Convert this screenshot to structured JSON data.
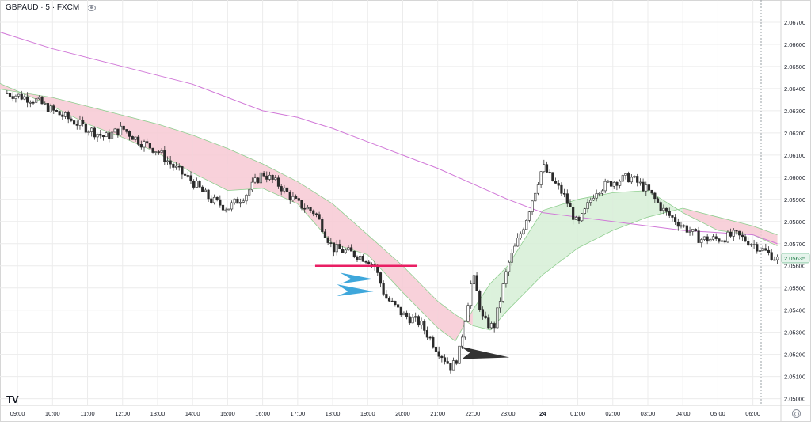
{
  "header": {
    "symbol": "GBPAUD · 5 · FXCM",
    "eye_icon": "eye-icon"
  },
  "footer": {
    "logo": "TV",
    "settings_icon": "gear-icon"
  },
  "colors": {
    "grid": "#ececec",
    "up": "#26a69a",
    "down": "#ef5350",
    "wick": "#333333",
    "ma_long": "#d179d8",
    "ribbon_red": "#f7c9d3",
    "ribbon_green": "#d6efd6",
    "ribbon_edge": "#8fce8f",
    "hline": "#e91e63",
    "arrow_blue": "#3ea7db",
    "arrow_dark": "#333333",
    "price_label": "#e6f4ec"
  },
  "chart_data": {
    "type": "candlestick",
    "symbol": "GBPAUD",
    "timeframe": "5",
    "source": "FXCM",
    "x_ticks": [
      "09:00",
      "10:00",
      "11:00",
      "12:00",
      "13:00",
      "14:00",
      "15:00",
      "16:00",
      "17:00",
      "18:00",
      "19:00",
      "20:00",
      "21:00",
      "22:00",
      "23:00",
      "24",
      "01:00",
      "02:00",
      "03:00",
      "04:00",
      "05:00",
      "06:00"
    ],
    "y_ticks": [
      "2.06700",
      "2.06600",
      "2.06500",
      "2.06400",
      "2.06300",
      "2.06200",
      "2.06100",
      "2.06000",
      "2.05900",
      "2.05800",
      "2.05700",
      "2.05600",
      "2.05500",
      "2.05400",
      "2.05300",
      "2.05200",
      "2.05100",
      "2.05000"
    ],
    "ylim": [
      2.0497,
      2.068
    ],
    "current_price": "2.05635",
    "horizontal_line": {
      "price": 2.056,
      "from_hour": 17.5,
      "to_hour": 20.4
    },
    "price_path_hours": [
      8.7,
      9.5,
      10.0,
      10.5,
      11.0,
      11.5,
      12.0,
      12.5,
      13.0,
      13.5,
      14.0,
      14.5,
      15.0,
      15.5,
      16.0,
      16.5,
      17.0,
      17.5,
      18.0,
      18.5,
      19.0,
      19.2,
      19.5,
      20.0,
      20.5,
      21.0,
      21.4,
      21.6,
      21.8,
      22.0,
      22.3,
      22.6,
      23.0,
      23.5,
      24.0,
      24.3,
      24.6,
      25.0,
      25.5,
      26.0,
      26.5,
      27.0,
      27.5,
      28.0,
      28.5,
      29.0,
      29.5,
      30.0,
      30.5,
      30.7
    ],
    "price_path_values": [
      2.0638,
      2.0635,
      2.063,
      2.0626,
      2.0622,
      2.0618,
      2.0622,
      2.0616,
      2.0612,
      2.0604,
      2.0598,
      2.059,
      2.0586,
      2.0592,
      2.0602,
      2.0596,
      2.0588,
      2.0584,
      2.0568,
      2.0566,
      2.0563,
      2.056,
      2.0546,
      2.0538,
      2.0534,
      2.0522,
      2.0514,
      2.052,
      2.0538,
      2.0556,
      2.0535,
      2.0532,
      2.056,
      2.058,
      2.0605,
      2.0598,
      2.0592,
      2.0578,
      2.0594,
      2.0598,
      2.06,
      2.0594,
      2.0584,
      2.0578,
      2.0572,
      2.0572,
      2.0574,
      2.057,
      2.0565,
      2.0563
    ],
    "ma_long_hours": [
      8.4,
      10,
      12,
      14,
      15,
      16,
      17,
      18,
      19,
      20,
      21,
      22,
      23,
      24,
      25,
      26,
      27,
      28,
      29,
      30,
      30.7
    ],
    "ma_long_values": [
      2.0666,
      2.0658,
      2.065,
      2.0642,
      2.0636,
      2.063,
      2.0627,
      2.0622,
      2.0616,
      2.061,
      2.0604,
      2.0597,
      2.059,
      2.0584,
      2.0582,
      2.058,
      2.0578,
      2.0576,
      2.0575,
      2.0574,
      2.057
    ],
    "ribbon_hours": [
      8.4,
      10,
      11,
      12,
      13,
      14,
      15,
      16,
      17,
      18,
      19,
      20,
      21,
      21.5,
      22,
      22.5,
      23,
      24,
      25,
      26,
      27,
      28,
      29,
      30,
      30.7
    ],
    "ribbon_fast": [
      2.0643,
      2.0632,
      2.0624,
      2.0618,
      2.0611,
      2.0602,
      2.0594,
      2.0595,
      2.0588,
      2.057,
      2.0565,
      2.0548,
      2.0532,
      2.0526,
      2.054,
      2.0552,
      2.056,
      2.0585,
      2.059,
      2.0593,
      2.0594,
      2.0584,
      2.0576,
      2.0574,
      2.0569
    ],
    "ribbon_slow": [
      2.064,
      2.0636,
      2.0632,
      2.0628,
      2.0624,
      2.0619,
      2.0613,
      2.0606,
      2.0598,
      2.0588,
      2.0574,
      2.056,
      2.0544,
      2.0538,
      2.0533,
      2.0531,
      2.054,
      2.0556,
      2.0568,
      2.0576,
      2.0582,
      2.0586,
      2.0582,
      2.0578,
      2.0574
    ]
  }
}
